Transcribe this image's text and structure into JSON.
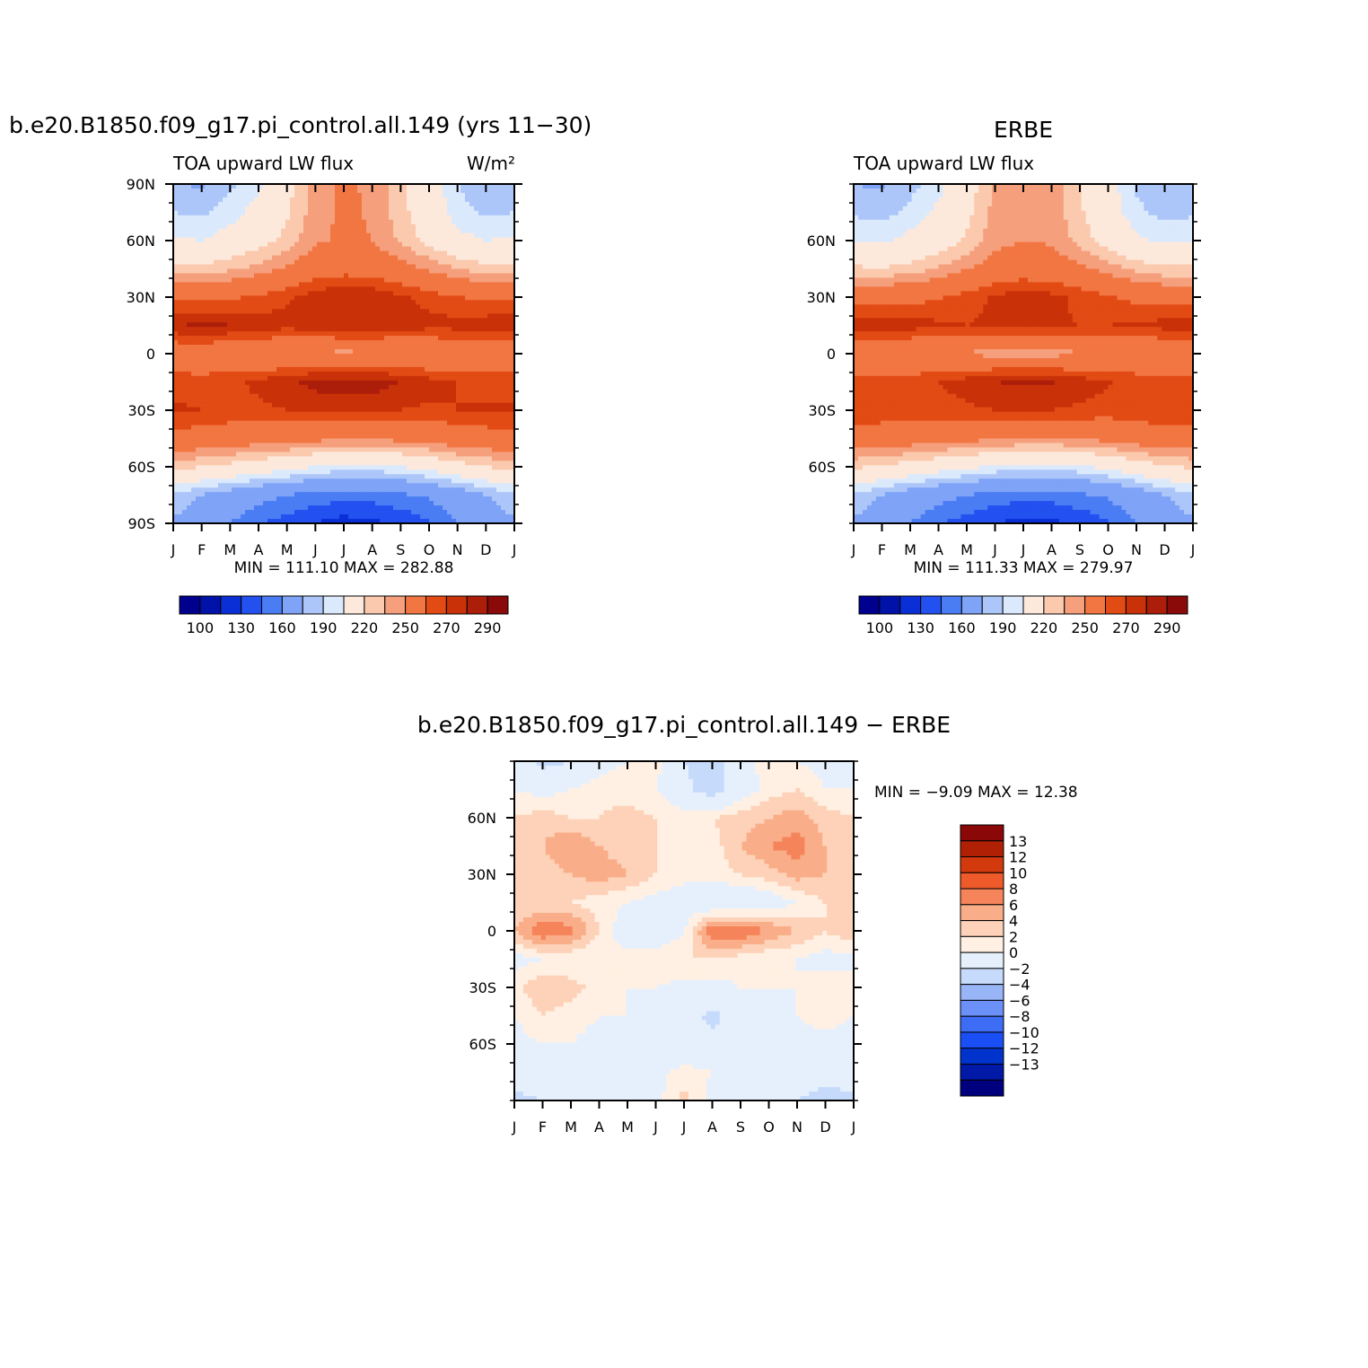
{
  "figure": {
    "palette": {
      "abs": [
        "#00008f",
        "#0012a8",
        "#0a2fd6",
        "#2251f0",
        "#4a7cf4",
        "#7ea3f7",
        "#adc6fa",
        "#dbe9fc",
        "#fde9dc",
        "#fbc9ad",
        "#f59f7c",
        "#f27642",
        "#e24b14",
        "#c93208",
        "#ad1e0a",
        "#8a0a0a"
      ],
      "diff": [
        "#00007f",
        "#0019a6",
        "#0033cc",
        "#1a4ff5",
        "#3d6cf5",
        "#6b90f7",
        "#98b5f8",
        "#c6dafb",
        "#e6f0fd",
        "#fff0e3",
        "#fdd2b8",
        "#f9ad88",
        "#f5845a",
        "#ee5a2a",
        "#d23a0e",
        "#b02005",
        "#8a0808"
      ]
    }
  },
  "chart_data": [
    {
      "id": "panel_model",
      "type": "heatmap",
      "title": "b.e20.B1850.f09_g17.pi_control.all.149 (yrs 11−30)",
      "left_label": "TOA upward LW flux",
      "right_label": "W/m²",
      "x_tick_labels": [
        "J",
        "F",
        "M",
        "A",
        "M",
        "J",
        "J",
        "A",
        "S",
        "O",
        "N",
        "D",
        "J"
      ],
      "y_tick_labels": [
        "90N",
        "60N",
        "30N",
        "0",
        "30S",
        "60S",
        "90S"
      ],
      "x": [
        "J",
        "F",
        "M",
        "A",
        "M",
        "J",
        "J",
        "A",
        "S",
        "O",
        "N",
        "D",
        "J"
      ],
      "y": [
        90,
        75,
        60,
        45,
        30,
        15,
        0,
        -15,
        -30,
        -45,
        -60,
        -75,
        -90
      ],
      "z": [
        [
          172,
          168,
          178,
          188,
          205,
          225,
          232,
          228,
          212,
          198,
          180,
          170,
          172
        ],
        [
          180,
          178,
          185,
          195,
          208,
          226,
          232,
          229,
          214,
          200,
          185,
          178,
          180
        ],
        [
          192,
          190,
          196,
          204,
          214,
          228,
          232,
          230,
          218,
          206,
          194,
          190,
          192
        ],
        [
          215,
          214,
          218,
          224,
          232,
          240,
          244,
          242,
          236,
          228,
          220,
          215,
          215
        ],
        [
          248,
          246,
          248,
          252,
          258,
          266,
          270,
          268,
          262,
          256,
          250,
          248,
          248
        ],
        [
          268,
          274,
          270,
          266,
          264,
          266,
          270,
          268,
          266,
          264,
          264,
          266,
          268
        ],
        [
          238,
          236,
          234,
          232,
          230,
          228,
          226,
          228,
          230,
          232,
          234,
          236,
          238
        ],
        [
          256,
          255,
          258,
          262,
          268,
          274,
          276,
          276,
          270,
          264,
          260,
          256,
          256
        ],
        [
          262,
          260,
          258,
          258,
          260,
          262,
          262,
          262,
          260,
          258,
          260,
          262,
          262
        ],
        [
          244,
          242,
          240,
          238,
          236,
          234,
          232,
          232,
          234,
          236,
          240,
          242,
          244
        ],
        [
          214,
          210,
          206,
          200,
          196,
          190,
          186,
          186,
          190,
          196,
          204,
          210,
          214
        ],
        [
          178,
          170,
          162,
          155,
          150,
          146,
          144,
          144,
          148,
          152,
          160,
          170,
          178
        ],
        [
          168,
          160,
          150,
          140,
          135,
          130,
          125,
          128,
          132,
          138,
          150,
          160,
          168
        ]
      ],
      "levels": [
        100,
        110,
        120,
        130,
        140,
        150,
        160,
        170,
        180,
        190,
        200,
        210,
        220,
        230,
        240,
        250,
        260,
        270,
        280,
        290
      ],
      "stats_text": "MIN = 111.10 MAX = 282.88",
      "colorbar_labels": [
        "100",
        "130",
        "160",
        "190",
        "220",
        "250",
        "270",
        "290"
      ]
    },
    {
      "id": "panel_obs",
      "type": "heatmap",
      "title": "ERBE",
      "left_label": "TOA upward LW flux",
      "right_label": "",
      "x_tick_labels": [
        "J",
        "F",
        "M",
        "A",
        "M",
        "J",
        "J",
        "A",
        "S",
        "O",
        "N",
        "D",
        "J"
      ],
      "y_tick_labels": [
        "60N",
        "30N",
        "0",
        "30S",
        "60S"
      ],
      "x": [
        "J",
        "F",
        "M",
        "A",
        "M",
        "J",
        "J",
        "A",
        "S",
        "O",
        "N",
        "D",
        "J"
      ],
      "y": [
        90,
        75,
        60,
        45,
        30,
        15,
        0,
        -15,
        -30,
        -45,
        -60,
        -75,
        -90
      ],
      "z": [
        [
          170,
          168,
          176,
          186,
          202,
          222,
          228,
          226,
          210,
          196,
          178,
          170,
          170
        ],
        [
          178,
          176,
          183,
          193,
          206,
          224,
          230,
          227,
          212,
          198,
          183,
          176,
          178
        ],
        [
          190,
          188,
          194,
          202,
          212,
          226,
          230,
          228,
          216,
          204,
          192,
          188,
          190
        ],
        [
          212,
          211,
          215,
          221,
          229,
          237,
          241,
          239,
          233,
          225,
          217,
          212,
          212
        ],
        [
          244,
          243,
          245,
          249,
          255,
          262,
          265,
          263,
          257,
          251,
          246,
          244,
          244
        ],
        [
          266,
          268,
          265,
          262,
          260,
          262,
          264,
          262,
          260,
          260,
          262,
          264,
          266
        ],
        [
          236,
          234,
          232,
          230,
          228,
          226,
          224,
          226,
          228,
          230,
          232,
          234,
          236
        ],
        [
          254,
          253,
          256,
          260,
          265,
          270,
          272,
          271,
          266,
          261,
          257,
          254,
          254
        ],
        [
          260,
          258,
          256,
          256,
          258,
          260,
          260,
          260,
          258,
          256,
          258,
          260,
          260
        ],
        [
          242,
          240,
          238,
          236,
          234,
          232,
          230,
          230,
          232,
          234,
          238,
          240,
          242
        ],
        [
          212,
          208,
          204,
          198,
          194,
          188,
          184,
          184,
          188,
          194,
          202,
          208,
          212
        ],
        [
          178,
          170,
          162,
          155,
          150,
          146,
          144,
          144,
          148,
          152,
          160,
          170,
          178
        ],
        [
          168,
          160,
          150,
          140,
          135,
          130,
          126,
          128,
          132,
          138,
          150,
          160,
          168
        ]
      ],
      "levels": [
        100,
        110,
        120,
        130,
        140,
        150,
        160,
        170,
        180,
        190,
        200,
        210,
        220,
        230,
        240,
        250,
        260,
        270,
        280,
        290
      ],
      "stats_text": "MIN = 111.33 MAX = 279.97",
      "colorbar_labels": [
        "100",
        "130",
        "160",
        "190",
        "220",
        "250",
        "270",
        "290"
      ]
    },
    {
      "id": "panel_diff",
      "type": "heatmap",
      "title": "b.e20.B1850.f09_g17.pi_control.all.149 − ERBE",
      "left_label": "",
      "right_label": "",
      "x_tick_labels": [
        "J",
        "F",
        "M",
        "A",
        "M",
        "J",
        "J",
        "A",
        "S",
        "O",
        "N",
        "D",
        "J"
      ],
      "y_tick_labels": [
        "60N",
        "30N",
        "0",
        "30S",
        "60S"
      ],
      "x": [
        "J",
        "F",
        "M",
        "A",
        "M",
        "J",
        "J",
        "A",
        "S",
        "O",
        "N",
        "D",
        "J"
      ],
      "y": [
        90,
        75,
        60,
        45,
        30,
        15,
        0,
        -15,
        -30,
        -45,
        -60,
        -75,
        -90
      ],
      "z": [
        [
          1,
          -3,
          -2,
          1,
          2,
          3,
          -2,
          -4,
          1,
          3,
          2,
          1,
          1
        ],
        [
          2,
          1,
          2,
          3,
          3,
          2,
          -1,
          -4,
          0,
          3,
          4,
          2,
          2
        ],
        [
          4,
          5,
          4,
          4,
          5,
          4,
          3,
          4,
          5,
          6,
          7,
          5,
          4
        ],
        [
          6,
          6,
          8,
          6,
          5,
          4,
          2,
          3,
          6,
          8,
          9,
          6,
          6
        ],
        [
          5,
          5,
          6,
          7,
          6,
          4,
          3,
          3,
          4,
          5,
          7,
          6,
          5
        ],
        [
          4,
          4,
          4,
          3,
          2,
          1,
          0,
          -1,
          -1,
          0,
          2,
          4,
          4
        ],
        [
          6,
          10,
          9,
          4,
          0,
          -1,
          2,
          10,
          10,
          8,
          6,
          4,
          6
        ],
        [
          1,
          2,
          2,
          2,
          3,
          4,
          4,
          4,
          3,
          2,
          2,
          1,
          1
        ],
        [
          3,
          6,
          5,
          3,
          2,
          2,
          1,
          1,
          2,
          2,
          2,
          3,
          3
        ],
        [
          2,
          4,
          3,
          2,
          2,
          1,
          0,
          -3,
          0,
          1,
          2,
          3,
          2
        ],
        [
          1,
          2,
          2,
          1,
          0,
          -1,
          -1,
          -1,
          0,
          1,
          1,
          1,
          1
        ],
        [
          0,
          1,
          1,
          1,
          1,
          1,
          3,
          2,
          1,
          0,
          0,
          -1,
          0
        ],
        [
          -3,
          -2,
          -1,
          0,
          0,
          1,
          5,
          1,
          0,
          -1,
          -2,
          -3,
          -3
        ]
      ],
      "levels": [
        -15,
        -13,
        -12,
        -10,
        -8,
        -6,
        -4,
        -2,
        0,
        2,
        4,
        6,
        8,
        10,
        12,
        13,
        15
      ],
      "stats_text": "MIN =  −9.09 MAX =  12.38",
      "colorbar_labels": [
        "13",
        "12",
        "10",
        "8",
        "6",
        "4",
        "2",
        "0",
        "−2",
        "−4",
        "−6",
        "−8",
        "−10",
        "−12",
        "−13"
      ]
    }
  ]
}
